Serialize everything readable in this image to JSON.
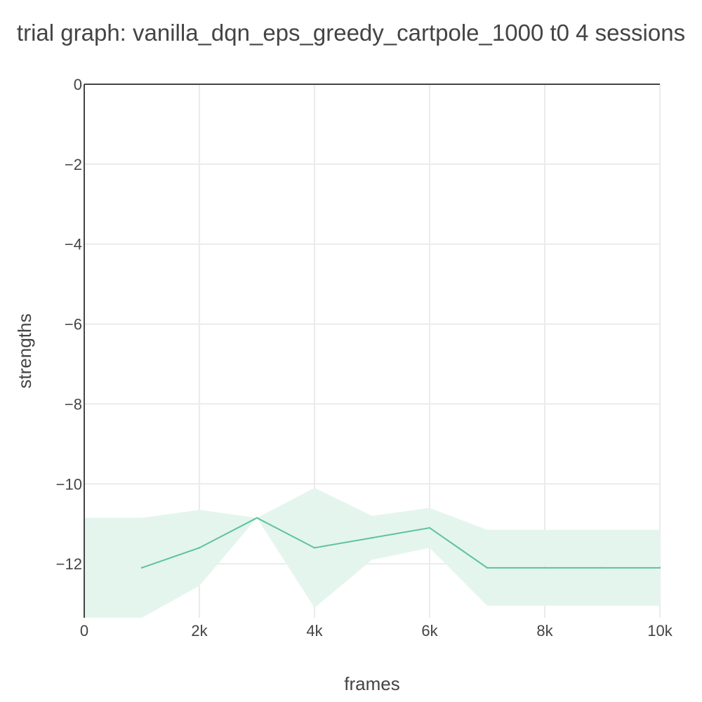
{
  "chart_data": {
    "type": "line",
    "title": "trial graph: vanilla_dqn_eps_greedy_cartpole_1000 t0 4 sessions",
    "xlabel": "frames",
    "ylabel": "strengths",
    "xlim": [
      0,
      10000
    ],
    "ylim": [
      -13.35,
      0
    ],
    "x_ticks": [
      0,
      2000,
      4000,
      6000,
      8000,
      10000
    ],
    "x_tick_labels": [
      "0",
      "2k",
      "4k",
      "6k",
      "8k",
      "10k"
    ],
    "y_ticks": [
      0,
      -2,
      -4,
      -6,
      -8,
      -10,
      -12
    ],
    "y_tick_labels": [
      "0",
      "−2",
      "−4",
      "−6",
      "−8",
      "−10",
      "−12"
    ],
    "grid": true,
    "legend": "none",
    "series": [
      {
        "x": [
          1000,
          2000,
          3000,
          4000,
          5000,
          6000,
          7000,
          8000,
          9000,
          10000
        ],
        "y": [
          -12.1,
          -11.6,
          -10.85,
          -11.6,
          -11.35,
          -11.1,
          -12.1,
          -12.1,
          -12.1,
          -12.1
        ],
        "color": "#5fc29c"
      }
    ],
    "band": {
      "x": [
        0,
        1000,
        2000,
        3000,
        4000,
        5000,
        6000,
        7000,
        8000,
        9000,
        10000
      ],
      "upper": [
        -10.85,
        -10.85,
        -10.65,
        -10.85,
        -10.1,
        -10.8,
        -10.6,
        -11.15,
        -11.15,
        -11.15,
        -11.15
      ],
      "lower": [
        -13.35,
        -13.35,
        -12.55,
        -10.85,
        -13.1,
        -11.9,
        -11.6,
        -13.05,
        -13.05,
        -13.05,
        -13.05
      ],
      "color": "#e4f5ee"
    }
  }
}
